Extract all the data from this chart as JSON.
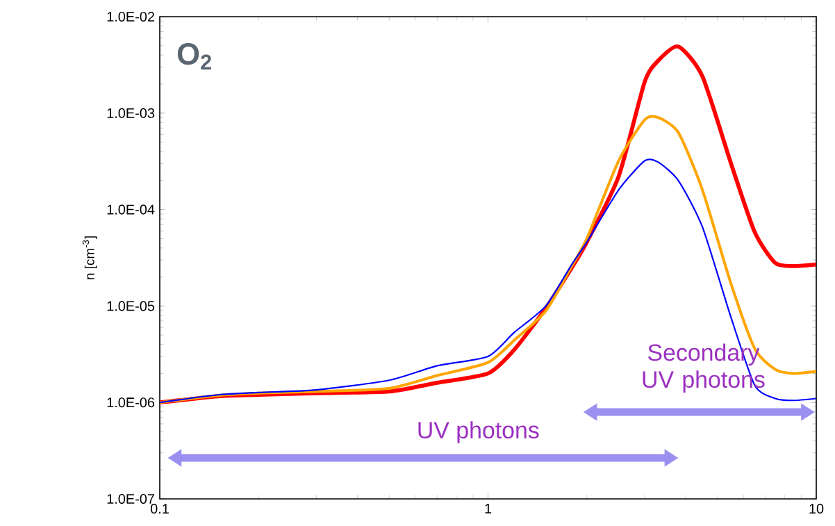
{
  "chart_data": {
    "type": "line",
    "ylabel": "n [cm$^{-3}$]",
    "log": "xy",
    "grid": false,
    "x": [
      0.1,
      0.15,
      0.2,
      0.3,
      0.5,
      0.7,
      1.0,
      1.2,
      1.5,
      1.8,
      2.0,
      2.5,
      3.0,
      3.3,
      3.8,
      4.5,
      5.5,
      6.5,
      7.5,
      8.5,
      10
    ],
    "series": [
      {
        "color": "#ff0000",
        "values": [
          1e-06,
          1.16e-06,
          1.2e-06,
          1.25e-06,
          1.3e-06,
          1.6e-06,
          2e-06,
          3.5e-06,
          9.5e-06,
          2.5e-05,
          4.6e-05,
          0.00022,
          0.0021,
          0.0035,
          0.0049,
          0.0024,
          0.0003,
          5.8e-05,
          2.8e-05,
          2.6e-05,
          2.7e-05
        ]
      },
      {
        "color": "#ffa500",
        "values": [
          1e-06,
          1.18e-06,
          1.25e-06,
          1.3e-06,
          1.4e-06,
          1.9e-06,
          2.6e-06,
          4.4e-06,
          8.9e-06,
          2.6e-05,
          5e-05,
          0.00032,
          0.00085,
          0.0009,
          0.00063,
          0.00016,
          1.7e-05,
          3.6e-06,
          2.2e-06,
          2e-06,
          2.1e-06
        ]
      },
      {
        "color": "#0000ff",
        "values": [
          1e-06,
          1.2e-06,
          1.27e-06,
          1.35e-06,
          1.7e-06,
          2.4e-06,
          3e-06,
          5.3e-06,
          1e-05,
          2.7e-05,
          4.6e-05,
          0.00016,
          0.00032,
          0.00031,
          0.0002,
          6.6e-05,
          7.6e-06,
          1.5e-06,
          1.1e-06,
          1.05e-06,
          1.1e-06
        ]
      }
    ],
    "xlim": [
      0.1,
      10
    ],
    "xticks": [
      0.1,
      1,
      10
    ],
    "ylim": [
      1e-07,
      0.01
    ],
    "yticks": [
      {
        "value": 1e-07,
        "label": "1.0E-07"
      },
      {
        "value": 1e-06,
        "label": "1.0E-06"
      },
      {
        "value": 1e-05,
        "label": "1.0E-05"
      },
      {
        "value": 0.0001,
        "label": "1.0E-04"
      },
      {
        "value": 0.001,
        "label": "1.0E-03"
      },
      {
        "value": 0.01,
        "label": "1.0E-02"
      }
    ],
    "annotations": [
      "O$_{2}$",
      "UV photons",
      "Secondary UV photons"
    ]
  }
}
